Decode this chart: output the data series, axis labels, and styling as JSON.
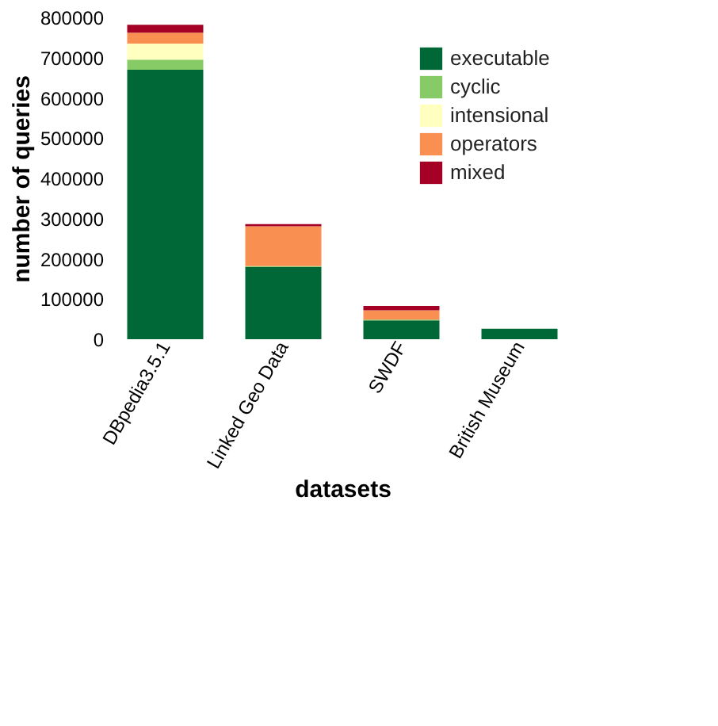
{
  "chart_data": {
    "type": "bar",
    "stacked": true,
    "xlabel": "datasets",
    "ylabel": "number of queries",
    "categories": [
      "DBpedia3.5.1",
      "Linked Geo Data",
      "SWDF",
      "British Museum"
    ],
    "series": [
      {
        "name": "executable",
        "color": "#006837",
        "values": [
          670000,
          180000,
          47000,
          26000
        ]
      },
      {
        "name": "cyclic",
        "color": "#86cb66",
        "values": [
          25000,
          2000,
          2000,
          0
        ]
      },
      {
        "name": "intensional",
        "color": "#ffffbf",
        "values": [
          40000,
          0,
          0,
          0
        ]
      },
      {
        "name": "operators",
        "color": "#fa8f52",
        "values": [
          27000,
          99000,
          23000,
          0
        ]
      },
      {
        "name": "mixed",
        "color": "#a50026",
        "values": [
          20000,
          5000,
          11000,
          0
        ]
      }
    ],
    "ylim": [
      0,
      800000
    ],
    "yticks": [
      0,
      100000,
      200000,
      300000,
      400000,
      500000,
      600000,
      700000,
      800000
    ],
    "grid": false,
    "legend": "top right"
  }
}
